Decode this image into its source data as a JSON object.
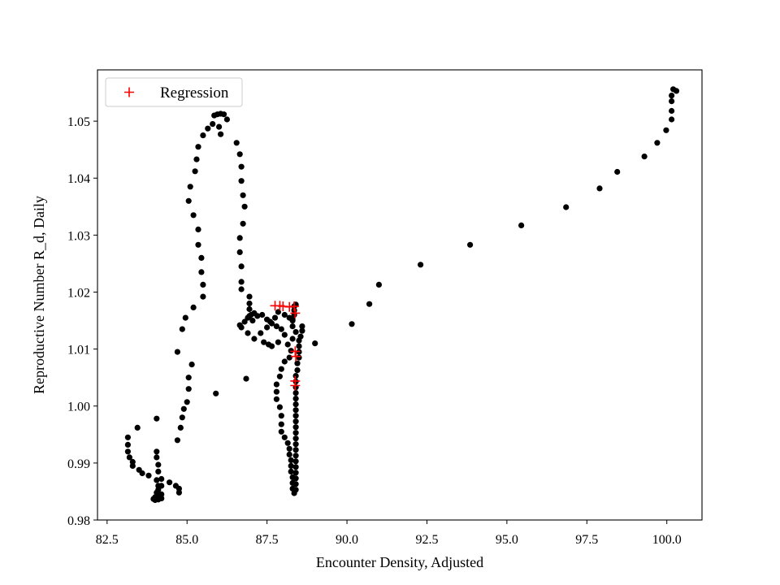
{
  "chart_data": {
    "type": "scatter",
    "title": "",
    "xlabel": "Encounter Density, Adjusted",
    "ylabel": "Reproductive Number R_d, Daily",
    "xlim": [
      82.2,
      101.1
    ],
    "ylim": [
      0.98,
      1.059
    ],
    "x_ticks": [
      82.5,
      85.0,
      87.5,
      90.0,
      92.5,
      95.0,
      97.5,
      100.0
    ],
    "x_tick_labels": [
      "82.5",
      "85.0",
      "87.5",
      "90.0",
      "92.5",
      "95.0",
      "97.5",
      "100.0"
    ],
    "y_ticks": [
      0.98,
      0.99,
      1.0,
      1.01,
      1.02,
      1.03,
      1.04,
      1.05
    ],
    "y_tick_labels": [
      "0.98",
      "0.99",
      "1.00",
      "1.01",
      "1.02",
      "1.03",
      "1.04",
      "1.05"
    ],
    "grid": false,
    "legend_position": "top-left",
    "colors": {
      "data": "#000000",
      "regression": "#ff0000"
    },
    "series": [
      {
        "name": "",
        "marker": "dot",
        "color": "#000000",
        "points": [
          [
            100.2,
            1.0556
          ],
          [
            100.3,
            1.0553
          ],
          [
            100.15,
            1.0545
          ],
          [
            100.15,
            1.0535
          ],
          [
            100.15,
            1.0518
          ],
          [
            100.15,
            1.0503
          ],
          [
            99.98,
            1.0484
          ],
          [
            99.7,
            1.0462
          ],
          [
            99.3,
            1.0438
          ],
          [
            98.45,
            1.0411
          ],
          [
            97.9,
            1.0382
          ],
          [
            96.85,
            1.0349
          ],
          [
            95.45,
            1.0317
          ],
          [
            93.85,
            1.0283
          ],
          [
            92.3,
            1.0248
          ],
          [
            91.0,
            1.0213
          ],
          [
            90.7,
            1.0179
          ],
          [
            90.15,
            1.0144
          ],
          [
            89.0,
            1.011
          ],
          [
            88.6,
            1.014
          ],
          [
            88.6,
            1.0132
          ],
          [
            88.55,
            1.0122
          ],
          [
            88.5,
            1.0115
          ],
          [
            88.5,
            1.0105
          ],
          [
            88.5,
            1.0095
          ],
          [
            88.5,
            1.0085
          ],
          [
            88.45,
            1.0075
          ],
          [
            88.45,
            1.0063
          ],
          [
            88.4,
            1.0053
          ],
          [
            88.4,
            1.0043
          ],
          [
            88.4,
            1.0033
          ],
          [
            88.4,
            1.0023
          ],
          [
            88.4,
            1.0013
          ],
          [
            88.4,
            1.0003
          ],
          [
            88.4,
            0.9993
          ],
          [
            88.4,
            0.9983
          ],
          [
            88.4,
            0.9973
          ],
          [
            88.4,
            0.9963
          ],
          [
            88.4,
            0.9953
          ],
          [
            88.4,
            0.9943
          ],
          [
            88.4,
            0.9933
          ],
          [
            88.4,
            0.9923
          ],
          [
            88.4,
            0.9913
          ],
          [
            88.4,
            0.9903
          ],
          [
            88.4,
            0.9893
          ],
          [
            88.4,
            0.9883
          ],
          [
            88.4,
            0.9873
          ],
          [
            88.4,
            0.9863
          ],
          [
            88.4,
            0.9853
          ],
          [
            88.35,
            0.9847
          ],
          [
            88.3,
            0.9855
          ],
          [
            88.3,
            0.9865
          ],
          [
            88.3,
            0.9875
          ],
          [
            88.25,
            0.9885
          ],
          [
            88.25,
            0.9895
          ],
          [
            88.25,
            0.9905
          ],
          [
            88.2,
            0.9915
          ],
          [
            88.2,
            0.9925
          ],
          [
            88.15,
            0.9935
          ],
          [
            88.05,
            0.9945
          ],
          [
            87.95,
            0.9955
          ],
          [
            87.95,
            0.9968
          ],
          [
            87.95,
            0.9983
          ],
          [
            87.9,
            0.9998
          ],
          [
            87.8,
            1.0012
          ],
          [
            87.8,
            1.0025
          ],
          [
            87.8,
            1.0038
          ],
          [
            87.9,
            1.0052
          ],
          [
            87.95,
            1.0065
          ],
          [
            88.05,
            1.0078
          ],
          [
            88.2,
            1.0085
          ],
          [
            88.25,
            1.0097
          ],
          [
            88.15,
            1.0108
          ],
          [
            88.3,
            1.0118
          ],
          [
            88.4,
            1.013
          ],
          [
            88.3,
            1.014
          ],
          [
            88.3,
            1.0152
          ],
          [
            88.35,
            1.016
          ],
          [
            88.35,
            1.0168
          ],
          [
            88.35,
            1.0175
          ],
          [
            88.4,
            1.0178
          ],
          [
            88.3,
            1.015
          ],
          [
            88.2,
            1.0155
          ],
          [
            88.05,
            1.016
          ],
          [
            87.85,
            1.0165
          ],
          [
            87.75,
            1.0155
          ],
          [
            87.6,
            1.0148
          ],
          [
            87.5,
            1.0138
          ],
          [
            87.3,
            1.0128
          ],
          [
            87.1,
            1.0118
          ],
          [
            86.9,
            1.0128
          ],
          [
            86.7,
            1.0138
          ],
          [
            86.65,
            1.0142
          ],
          [
            86.8,
            1.0148
          ],
          [
            86.9,
            1.0155
          ],
          [
            87.0,
            1.016
          ],
          [
            87.1,
            1.0163
          ],
          [
            87.2,
            1.0158
          ],
          [
            87.35,
            1.016
          ],
          [
            87.5,
            1.0152
          ],
          [
            87.65,
            1.0145
          ],
          [
            87.8,
            1.014
          ],
          [
            87.95,
            1.0135
          ],
          [
            88.05,
            1.0125
          ],
          [
            87.85,
            1.0112
          ],
          [
            87.65,
            1.0105
          ],
          [
            87.55,
            1.0108
          ],
          [
            87.4,
            1.0112
          ],
          [
            87.05,
            1.015
          ],
          [
            86.95,
            1.0158
          ],
          [
            86.95,
            1.017
          ],
          [
            86.95,
            1.018
          ],
          [
            86.95,
            1.0192
          ],
          [
            86.7,
            1.0205
          ],
          [
            86.7,
            1.0218
          ],
          [
            86.7,
            1.0245
          ],
          [
            86.65,
            1.027
          ],
          [
            86.65,
            1.0295
          ],
          [
            86.75,
            1.032
          ],
          [
            86.8,
            1.035
          ],
          [
            86.75,
            1.037
          ],
          [
            86.7,
            1.0395
          ],
          [
            86.7,
            1.042
          ],
          [
            86.65,
            1.0442
          ],
          [
            86.55,
            1.0462
          ],
          [
            86.25,
            1.0503
          ],
          [
            86.15,
            1.0512
          ],
          [
            86.05,
            1.0513
          ],
          [
            85.95,
            1.0512
          ],
          [
            85.85,
            1.051
          ],
          [
            85.8,
            1.0495
          ],
          [
            86.0,
            1.049
          ],
          [
            86.05,
            1.0477
          ],
          [
            85.65,
            1.0487
          ],
          [
            85.5,
            1.0475
          ],
          [
            85.35,
            1.0455
          ],
          [
            85.3,
            1.0433
          ],
          [
            85.25,
            1.0412
          ],
          [
            85.1,
            1.0385
          ],
          [
            85.05,
            1.036
          ],
          [
            85.2,
            1.0335
          ],
          [
            85.35,
            1.031
          ],
          [
            85.35,
            1.0283
          ],
          [
            85.45,
            1.026
          ],
          [
            85.45,
            1.0235
          ],
          [
            85.5,
            1.0213
          ],
          [
            85.5,
            1.0192
          ],
          [
            85.2,
            1.0173
          ],
          [
            84.95,
            1.0155
          ],
          [
            84.85,
            1.0135
          ],
          [
            84.7,
            1.0095
          ],
          [
            85.15,
            1.0073
          ],
          [
            85.05,
            1.005
          ],
          [
            85.05,
            1.003
          ],
          [
            85.0,
            1.0007
          ],
          [
            84.9,
            0.9995
          ],
          [
            84.85,
            0.998
          ],
          [
            84.8,
            0.9962
          ],
          [
            84.7,
            0.994
          ],
          [
            85.9,
            1.0022
          ],
          [
            86.85,
            1.0048
          ],
          [
            84.05,
            0.9978
          ],
          [
            83.45,
            0.9962
          ],
          [
            83.15,
            0.9945
          ],
          [
            83.15,
            0.9932
          ],
          [
            83.15,
            0.992
          ],
          [
            83.2,
            0.991
          ],
          [
            83.3,
            0.9902
          ],
          [
            83.3,
            0.9895
          ],
          [
            83.5,
            0.9888
          ],
          [
            83.6,
            0.9882
          ],
          [
            83.8,
            0.9878
          ],
          [
            84.05,
            0.992
          ],
          [
            84.05,
            0.991
          ],
          [
            84.1,
            0.9897
          ],
          [
            84.1,
            0.9885
          ],
          [
            84.05,
            0.987
          ],
          [
            84.1,
            0.986
          ],
          [
            84.1,
            0.9853
          ],
          [
            84.05,
            0.9848
          ],
          [
            84.1,
            0.9843
          ],
          [
            84.0,
            0.984
          ],
          [
            83.95,
            0.9837
          ],
          [
            84.0,
            0.9835
          ],
          [
            84.1,
            0.9836
          ],
          [
            84.2,
            0.9838
          ],
          [
            84.2,
            0.9845
          ],
          [
            84.2,
            0.986
          ],
          [
            84.2,
            0.9872
          ],
          [
            84.45,
            0.9866
          ],
          [
            84.65,
            0.986
          ],
          [
            84.75,
            0.9855
          ],
          [
            84.75,
            0.9848
          ]
        ]
      },
      {
        "name": "Regression",
        "marker": "plus",
        "color": "#ff0000",
        "points": [
          [
            87.75,
            1.0176
          ],
          [
            87.9,
            1.0176
          ],
          [
            88.0,
            1.0175
          ],
          [
            88.2,
            1.0174
          ],
          [
            88.35,
            1.0175
          ],
          [
            88.38,
            1.0163
          ],
          [
            88.38,
            1.0096
          ],
          [
            88.4,
            1.0087
          ],
          [
            88.38,
            1.0044
          ],
          [
            88.38,
            1.0036
          ]
        ]
      }
    ]
  }
}
